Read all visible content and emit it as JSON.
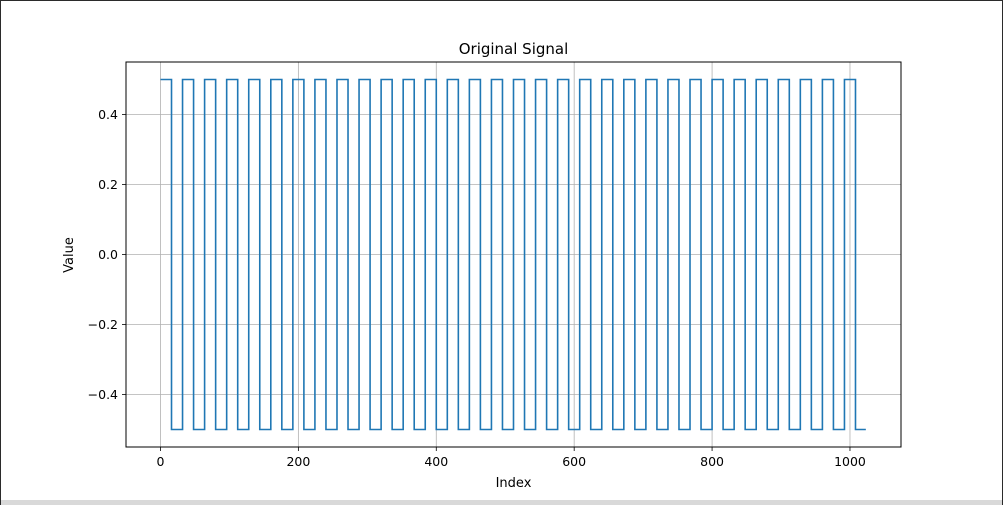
{
  "chart_data": {
    "type": "line",
    "title": "Original Signal",
    "xlabel": "Index",
    "ylabel": "Value",
    "xlim": [
      -50,
      1074
    ],
    "ylim": [
      -0.55,
      0.55
    ],
    "grid": true,
    "x_ticks": [
      0,
      200,
      400,
      600,
      800,
      1000
    ],
    "x_tick_labels": [
      "0",
      "200",
      "400",
      "600",
      "800",
      "1000"
    ],
    "y_ticks": [
      -0.4,
      -0.2,
      0.0,
      0.2,
      0.4
    ],
    "y_tick_labels": [
      "−0.4",
      "−0.2",
      "0.0",
      "0.2",
      "0.4"
    ],
    "series": [
      {
        "color": "#1f77b4",
        "signal": "square_wave",
        "x_start": 0,
        "x_end": 1023,
        "period": 32,
        "high": 0.5,
        "low": -0.5,
        "first_level": 0.5
      }
    ]
  }
}
